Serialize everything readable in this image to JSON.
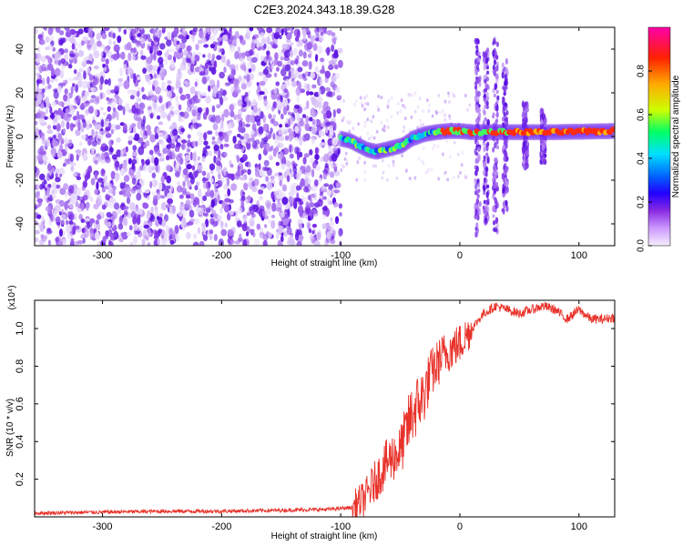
{
  "title": "C2E3.2024.343.18.39.G28",
  "chart_data": [
    {
      "type": "heatmap",
      "xlabel": "Height of straight line (km)",
      "ylabel": "Frequency (Hz)",
      "xlim": [
        -357,
        130
      ],
      "ylim": [
        -50,
        50
      ],
      "xticks": [
        -300,
        -200,
        -100,
        0,
        100
      ],
      "xtick_labels": [
        "-300",
        "-200",
        "-100",
        "0",
        "100"
      ],
      "yticks": [
        -40,
        -20,
        0,
        20,
        40
      ],
      "ytick_labels": [
        "-40",
        "-20",
        "0",
        "20",
        "40"
      ],
      "colorbar": {
        "label": "Normalized spectral amplitude",
        "range": [
          0,
          1
        ],
        "ticks": [
          0.0,
          0.2,
          0.4,
          0.6,
          0.8
        ],
        "tick_labels": [
          "0.0",
          "0.2",
          "0.4",
          "0.6",
          "0.8"
        ],
        "colors": [
          "#f6eefc",
          "#cc99ff",
          "#8a2be2",
          "#2200ff",
          "#0066ff",
          "#00e0ff",
          "#00ff66",
          "#ccff00",
          "#ffaa00",
          "#ff2200",
          "#ff00aa"
        ]
      },
      "ridge": {
        "x": [
          -100,
          -92,
          -85,
          -78,
          -70,
          -62,
          -55,
          -48,
          -40,
          -30,
          -20,
          -10,
          0,
          10,
          20,
          30,
          40,
          60,
          80,
          100,
          130
        ],
        "y": [
          -1,
          -2,
          -4,
          -6,
          -7,
          -6,
          -5,
          -4,
          -1,
          1,
          2,
          2.5,
          2.5,
          2,
          2,
          2,
          2,
          2,
          2,
          2.2,
          2.5
        ]
      }
    },
    {
      "type": "line",
      "xlabel": "Height of straight line (km)",
      "ylabel": "SNR (10 * v/v)",
      "y_multiplier": "(x10⁴)",
      "xlim": [
        -357,
        130
      ],
      "ylim": [
        0,
        1.15
      ],
      "xticks": [
        -300,
        -200,
        -100,
        0,
        100
      ],
      "xtick_labels": [
        "-300",
        "-200",
        "-100",
        "0",
        "100"
      ],
      "yticks": [
        0.2,
        0.4,
        0.6,
        0.8,
        1.0
      ],
      "ytick_labels": [
        "0.2",
        "0.4",
        "0.6",
        "0.8",
        "1.0"
      ],
      "color": "#e8322a",
      "series": [
        {
          "x": [
            -357,
            -300,
            -250,
            -200,
            -150,
            -110,
            -90,
            -80,
            -70,
            -60,
            -50,
            -45,
            -40,
            -35,
            -30,
            -25,
            -20,
            -15,
            -10,
            -5,
            0,
            10,
            20,
            30,
            40,
            50,
            60,
            70,
            80,
            90,
            100,
            110,
            120,
            130
          ],
          "values": [
            0.02,
            0.025,
            0.03,
            0.03,
            0.035,
            0.04,
            0.05,
            0.1,
            0.2,
            0.3,
            0.35,
            0.45,
            0.55,
            0.6,
            0.65,
            0.75,
            0.8,
            0.85,
            0.88,
            0.9,
            0.92,
            1.0,
            1.08,
            1.12,
            1.1,
            1.08,
            1.1,
            1.12,
            1.1,
            1.05,
            1.1,
            1.05,
            1.05,
            1.06
          ]
        }
      ]
    }
  ]
}
